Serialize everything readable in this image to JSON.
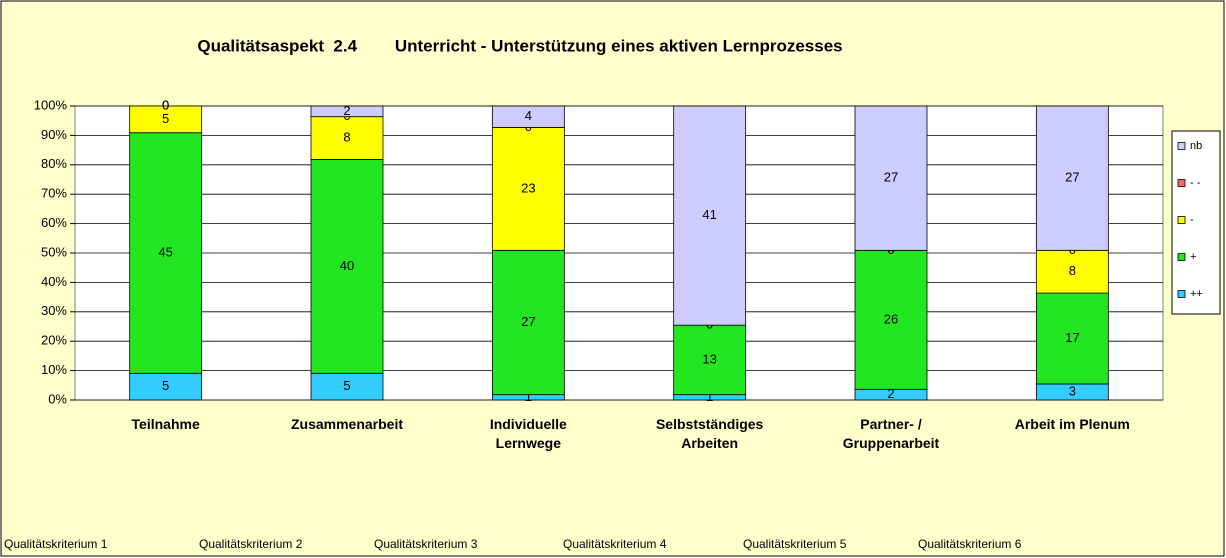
{
  "chart_data": {
    "type": "bar",
    "stacked": "percent",
    "title": "Qualitätsaspekt  2.4        Unterricht - Unterstützung eines aktiven Lernprozesses",
    "categories": [
      "Teilnahme",
      "Zusammenarbeit",
      "Individuelle Lernwege",
      "Selbstständiges Arbeiten",
      "Partner- / Gruppenarbeit",
      "Arbeit im Plenum"
    ],
    "series": [
      {
        "name": "++",
        "color": "#33CCFF",
        "values": [
          5,
          5,
          1,
          1,
          2,
          3
        ]
      },
      {
        "name": "+",
        "color": "#22E622",
        "values": [
          45,
          40,
          27,
          13,
          26,
          17
        ]
      },
      {
        "name": "-",
        "color": "#FFFF00",
        "values": [
          5,
          8,
          23,
          0,
          0,
          8
        ]
      },
      {
        "name": "- -",
        "color": "#FF6666",
        "values": [
          0,
          0,
          0,
          0,
          0,
          0
        ]
      },
      {
        "name": "nb",
        "color": "#CCCCFF",
        "values": [
          0,
          2,
          4,
          41,
          27,
          27
        ]
      }
    ],
    "ylim": [
      0,
      100
    ],
    "yticks": [
      {
        "value": 0,
        "label": "0%"
      },
      {
        "value": 10,
        "label": "10%"
      },
      {
        "value": 20,
        "label": "20%"
      },
      {
        "value": 30,
        "label": "30%"
      },
      {
        "value": 40,
        "label": "40%"
      },
      {
        "value": 50,
        "label": "50%"
      },
      {
        "value": 60,
        "label": "60%"
      },
      {
        "value": 70,
        "label": "70%"
      },
      {
        "value": 80,
        "label": "80%"
      },
      {
        "value": 90,
        "label": "90%"
      },
      {
        "value": 100,
        "label": "100%"
      }
    ],
    "grid": true,
    "legend": "right",
    "annotations": [
      "Qualitätskriterium 1",
      "Qualitätskriterium 2",
      "Qualitätskriterium 3",
      "Qualitätskriterium 4",
      "Qualitätskriterium 5",
      "Qualitätskriterium 6"
    ]
  }
}
